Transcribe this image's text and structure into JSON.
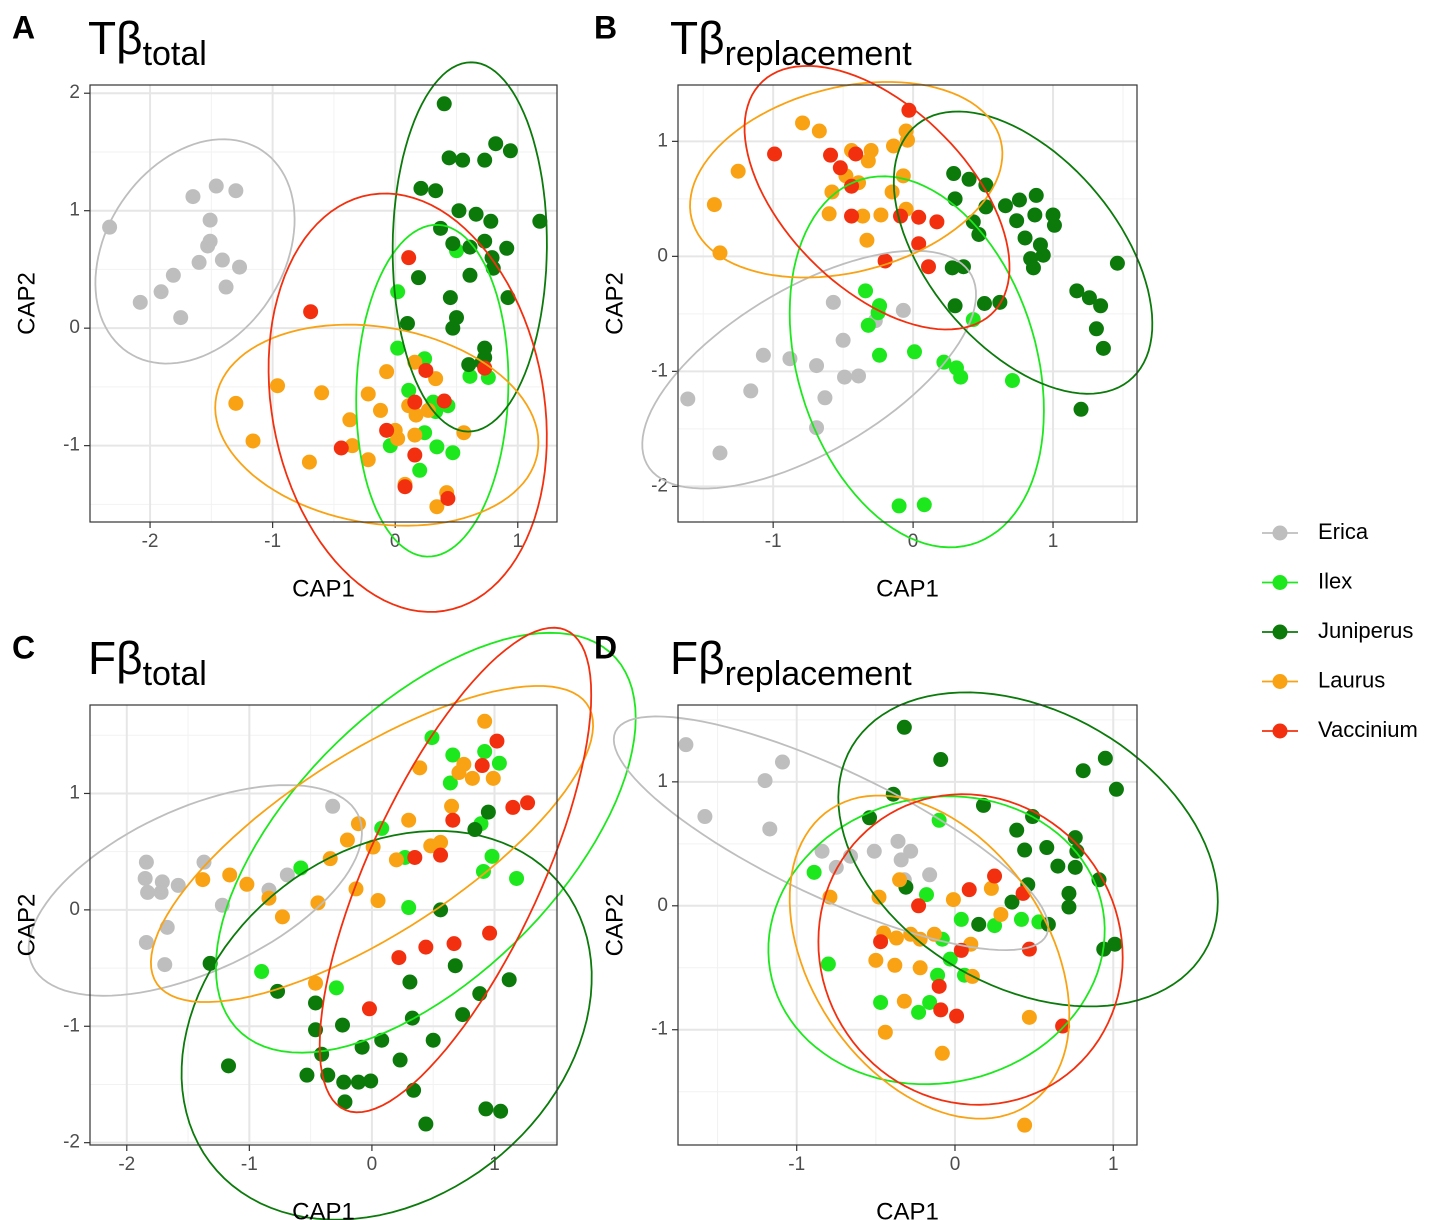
{
  "chart_data": [
    {
      "type": "scatter",
      "label": "A",
      "title": "Tβ",
      "title_sub": "total",
      "x_label": "CAP1",
      "y_label": "CAP2",
      "xlim": [
        -2.49,
        1.32
      ],
      "ylim": [
        -1.65,
        2.07
      ],
      "xticks": [
        -2,
        -1,
        0,
        1
      ],
      "yticks": [
        -1,
        0,
        1,
        2
      ],
      "grid": true,
      "ellipses": true,
      "series": [
        {
          "name": "Erica",
          "color": "#bebebe",
          "x": [
            -2.33,
            -1.65,
            -1.46,
            -1.3,
            -1.51,
            -1.51,
            -1.53,
            -1.6,
            -1.41,
            -1.27,
            -1.38,
            -1.81,
            -1.91,
            -1.75,
            -2.08
          ],
          "y": [
            0.86,
            1.12,
            1.21,
            1.17,
            0.92,
            0.74,
            0.7,
            0.56,
            0.58,
            0.52,
            0.35,
            0.45,
            0.31,
            0.09,
            0.22
          ]
        },
        {
          "name": "Ilex",
          "color": "#1de81d",
          "x": [
            0.5,
            0.02,
            0.02,
            0.24,
            0.61,
            0.76,
            0.31,
            0.33,
            0.43,
            0.34,
            0.47,
            -0.04,
            0.24,
            0.2,
            0.11
          ],
          "y": [
            0.66,
            0.31,
            -0.17,
            -0.26,
            -0.41,
            -0.42,
            -0.63,
            -0.71,
            -0.66,
            -1.01,
            -1.06,
            -1.0,
            -0.89,
            -1.21,
            -0.53
          ]
        },
        {
          "name": "Juniperus",
          "color": "#0b7a0b",
          "x": [
            0.4,
            0.44,
            0.55,
            0.73,
            0.82,
            0.94,
            1.18,
            0.21,
            0.33,
            0.52,
            0.66,
            0.78,
            0.37,
            0.47,
            0.61,
            0.73,
            0.79,
            0.91,
            0.19,
            0.45,
            0.61,
            0.8,
            0.92,
            0.5,
            0.73,
            0.73,
            0.1,
            0.47,
            0.71,
            0.6
          ],
          "y": [
            1.91,
            1.45,
            1.43,
            1.43,
            1.57,
            1.51,
            0.91,
            1.19,
            1.17,
            1.0,
            0.97,
            0.91,
            0.85,
            0.72,
            0.69,
            0.74,
            0.6,
            0.68,
            0.43,
            0.26,
            0.45,
            0.51,
            0.26,
            0.09,
            -0.17,
            -0.25,
            0.04,
            0.0,
            -0.29,
            -0.31
          ]
        },
        {
          "name": "Laurus",
          "color": "#f9a213",
          "x": [
            -1.3,
            -0.96,
            -1.16,
            -0.6,
            -0.7,
            -0.37,
            -0.35,
            -0.22,
            -0.22,
            -0.07,
            -0.12,
            0.0,
            0.11,
            0.16,
            0.16,
            0.33,
            0.27,
            0.56,
            0.42,
            0.34,
            0.08,
            0.17,
            0.02
          ],
          "y": [
            -0.64,
            -0.49,
            -0.96,
            -0.55,
            -1.14,
            -0.78,
            -1.0,
            -0.56,
            -1.12,
            -0.37,
            -0.7,
            -0.87,
            -0.66,
            -0.29,
            -0.91,
            -0.43,
            -0.7,
            -0.89,
            -1.4,
            -1.52,
            -1.33,
            -0.74,
            -0.94
          ]
        },
        {
          "name": "Vaccinium",
          "color": "#f2300f",
          "x": [
            -0.69,
            0.11,
            0.73,
            0.25,
            0.16,
            -0.07,
            -0.44,
            0.43,
            0.08,
            0.16,
            0.4
          ],
          "y": [
            0.14,
            0.6,
            -0.34,
            -0.36,
            -0.63,
            -0.87,
            -1.02,
            -1.45,
            -1.35,
            -1.08,
            -0.62
          ]
        }
      ]
    },
    {
      "type": "scatter",
      "label": "B",
      "title": "Tβ",
      "title_sub": "replacement",
      "x_label": "CAP1",
      "y_label": "CAP2",
      "xlim": [
        -1.68,
        1.6
      ],
      "ylim": [
        -2.31,
        1.49
      ],
      "xticks": [
        -1,
        0,
        1
      ],
      "yticks": [
        -2,
        -1,
        0,
        1
      ],
      "grid": true,
      "ellipses": true,
      "series": [
        {
          "name": "Erica",
          "color": "#bebebe",
          "x": [
            -1.61,
            -1.38,
            -1.16,
            -1.07,
            -0.88,
            -0.69,
            -0.63,
            -0.69,
            -0.49,
            -0.39,
            -0.5,
            -0.57,
            -0.27,
            -0.07
          ],
          "y": [
            -1.24,
            -1.71,
            -1.17,
            -0.86,
            -0.89,
            -0.95,
            -1.23,
            -1.49,
            -1.05,
            -1.04,
            -0.73,
            -0.4,
            -0.56,
            -0.47
          ]
        },
        {
          "name": "Ilex",
          "color": "#1de81d",
          "x": [
            -0.34,
            -0.32,
            -0.24,
            -0.25,
            -0.24,
            0.01,
            0.22,
            0.34,
            0.31,
            0.43,
            0.71,
            -0.1,
            0.08,
            -0.24
          ],
          "y": [
            -0.3,
            -0.6,
            -0.43,
            -0.49,
            -0.86,
            -0.83,
            -0.92,
            -1.05,
            -0.97,
            -0.55,
            -1.08,
            -2.17,
            -2.16,
            -0.43
          ]
        },
        {
          "name": "Juniperus",
          "color": "#0b7a0b",
          "x": [
            0.29,
            0.4,
            0.52,
            0.3,
            0.52,
            0.66,
            0.76,
            0.87,
            1.0,
            0.88,
            0.74,
            0.43,
            0.47,
            0.8,
            0.91,
            1.01,
            0.84,
            0.86,
            0.93,
            0.36,
            1.17,
            1.26,
            1.46,
            1.34,
            1.31,
            1.36,
            1.2,
            0.3,
            0.51,
            0.62,
            0.28
          ],
          "y": [
            0.72,
            0.67,
            0.62,
            0.5,
            0.43,
            0.44,
            0.49,
            0.36,
            0.36,
            0.53,
            0.31,
            0.3,
            0.19,
            0.16,
            0.1,
            0.27,
            -0.02,
            -0.1,
            0.01,
            -0.09,
            -0.3,
            -0.36,
            -0.06,
            -0.43,
            -0.63,
            -0.8,
            -1.33,
            -0.43,
            -0.41,
            -0.4,
            -0.1
          ]
        },
        {
          "name": "Laurus",
          "color": "#f9a213",
          "x": [
            -0.79,
            -0.67,
            -1.25,
            -1.42,
            -1.38,
            -0.44,
            -0.3,
            -0.14,
            -0.04,
            -0.05,
            -0.48,
            -0.58,
            -0.39,
            -0.32,
            -0.07,
            -0.15,
            -0.6,
            -0.36,
            -0.23,
            -0.33,
            -0.05
          ],
          "y": [
            1.16,
            1.09,
            0.74,
            0.45,
            0.03,
            0.92,
            0.92,
            0.96,
            1.01,
            1.09,
            0.7,
            0.56,
            0.64,
            0.83,
            0.7,
            0.56,
            0.37,
            0.35,
            0.36,
            0.14,
            0.41
          ]
        },
        {
          "name": "Vaccinium",
          "color": "#f2300f",
          "x": [
            -0.03,
            -0.99,
            -0.59,
            -0.41,
            -0.52,
            -0.44,
            -0.44,
            -0.09,
            0.04,
            0.17,
            -0.2,
            0.11,
            0.04
          ],
          "y": [
            1.27,
            0.89,
            0.88,
            0.89,
            0.77,
            0.61,
            0.35,
            0.35,
            0.34,
            0.3,
            -0.04,
            -0.09,
            0.11
          ]
        }
      ]
    },
    {
      "type": "scatter",
      "label": "C",
      "title": "Fβ",
      "title_sub": "total",
      "x_label": "CAP1",
      "y_label": "CAP2",
      "xlim": [
        -2.3,
        1.51
      ],
      "ylim": [
        -2.02,
        1.76
      ],
      "xticks": [
        -2,
        -1,
        0,
        1
      ],
      "yticks": [
        -2,
        -1,
        0,
        1
      ],
      "grid": true,
      "ellipses": true,
      "series": [
        {
          "name": "Erica",
          "color": "#bebebe",
          "x": [
            -1.84,
            -1.85,
            -1.71,
            -1.58,
            -1.83,
            -1.72,
            -1.84,
            -1.67,
            -1.69,
            -1.37,
            -1.22,
            -0.84,
            -0.69,
            -0.32
          ],
          "y": [
            0.41,
            0.27,
            0.24,
            0.21,
            0.15,
            0.15,
            -0.28,
            -0.15,
            -0.47,
            0.41,
            0.04,
            0.17,
            0.3,
            0.89
          ]
        },
        {
          "name": "Ilex",
          "color": "#1de81d",
          "x": [
            0.49,
            0.66,
            0.92,
            1.04,
            0.08,
            0.27,
            0.64,
            0.89,
            0.98,
            0.91,
            1.18,
            -0.58,
            0.3,
            -0.9,
            -0.29
          ],
          "y": [
            1.48,
            1.33,
            1.36,
            1.26,
            0.7,
            0.45,
            1.09,
            0.74,
            0.46,
            0.33,
            0.27,
            0.36,
            0.02,
            -0.53,
            -0.67
          ]
        },
        {
          "name": "Juniperus",
          "color": "#0b7a0b",
          "x": [
            -1.32,
            -0.77,
            -1.17,
            -0.53,
            -0.46,
            -0.46,
            -0.41,
            -0.36,
            -0.24,
            -0.23,
            -0.22,
            -0.11,
            -0.01,
            -0.08,
            0.08,
            0.23,
            0.33,
            0.34,
            0.5,
            0.56,
            0.68,
            0.74,
            0.88,
            1.12,
            0.44,
            0.93,
            1.05,
            0.95,
            0.84,
            0.31
          ],
          "y": [
            -0.46,
            -0.7,
            -1.34,
            -1.42,
            -0.8,
            -1.03,
            -1.24,
            -1.42,
            -0.99,
            -1.48,
            -1.65,
            -1.48,
            -1.47,
            -1.18,
            -1.12,
            -1.29,
            -0.93,
            -1.55,
            -1.12,
            0.0,
            -0.48,
            -0.9,
            -0.72,
            -0.6,
            -1.84,
            -1.71,
            -1.73,
            0.84,
            0.69,
            -0.62
          ]
        },
        {
          "name": "Laurus",
          "color": "#f9a213",
          "x": [
            0.92,
            -1.38,
            -1.16,
            -1.02,
            -0.84,
            -0.73,
            -0.46,
            -0.44,
            -0.34,
            -0.2,
            -0.11,
            0.01,
            -0.13,
            0.05,
            0.2,
            0.3,
            0.48,
            0.56,
            0.65,
            0.71,
            0.75,
            0.82,
            0.99,
            0.39
          ],
          "y": [
            1.62,
            0.26,
            0.3,
            0.22,
            0.1,
            -0.06,
            -0.63,
            0.06,
            0.44,
            0.6,
            0.74,
            0.54,
            0.18,
            0.08,
            0.43,
            0.77,
            0.55,
            0.58,
            0.89,
            1.18,
            1.25,
            1.13,
            1.13,
            1.22
          ]
        },
        {
          "name": "Vaccinium",
          "color": "#f2300f",
          "x": [
            1.02,
            1.27,
            1.15,
            0.9,
            0.66,
            0.56,
            0.35,
            0.67,
            0.44,
            0.22,
            -0.02,
            0.96
          ],
          "y": [
            1.45,
            0.92,
            0.88,
            1.24,
            0.77,
            0.47,
            0.45,
            -0.29,
            -0.32,
            -0.41,
            -0.85,
            -0.2
          ]
        }
      ]
    },
    {
      "type": "scatter",
      "label": "D",
      "title": "Fβ",
      "title_sub": "replacement",
      "x_label": "CAP1",
      "y_label": "CAP2",
      "xlim": [
        -1.75,
        1.15
      ],
      "ylim": [
        -1.93,
        1.62
      ],
      "xticks": [
        -1,
        0,
        1
      ],
      "yticks": [
        -1,
        0,
        1
      ],
      "grid": true,
      "ellipses": true,
      "series": [
        {
          "name": "Erica",
          "color": "#bebebe",
          "x": [
            -1.7,
            -1.58,
            -1.2,
            -1.09,
            -1.17,
            -0.84,
            -0.75,
            -0.66,
            -0.51,
            -0.36,
            -0.28,
            -0.34,
            -0.32,
            -0.16
          ],
          "y": [
            1.3,
            0.72,
            1.01,
            1.16,
            0.62,
            0.44,
            0.31,
            0.4,
            0.44,
            0.52,
            0.44,
            0.37,
            0.21,
            0.25
          ]
        },
        {
          "name": "Ilex",
          "color": "#1de81d",
          "x": [
            -0.89,
            -0.8,
            -0.1,
            -0.47,
            -0.18,
            -0.08,
            -0.03,
            0.06,
            -0.11,
            -0.23,
            0.25,
            0.42,
            0.53,
            0.04,
            -0.16
          ],
          "y": [
            0.27,
            -0.47,
            0.69,
            -0.78,
            0.09,
            -0.27,
            -0.43,
            -0.56,
            -0.56,
            -0.86,
            -0.16,
            -0.11,
            -0.13,
            -0.11,
            -0.78
          ]
        },
        {
          "name": "Juniperus",
          "color": "#0b7a0b",
          "x": [
            -0.32,
            -0.09,
            -0.39,
            -0.54,
            0.18,
            0.39,
            0.49,
            0.44,
            0.58,
            0.76,
            0.77,
            0.81,
            0.95,
            1.02,
            0.65,
            0.76,
            0.72,
            0.91,
            0.72,
            0.46,
            0.59,
            1.01,
            0.94,
            0.15,
            0.36,
            -0.31
          ],
          "y": [
            1.44,
            1.18,
            0.9,
            0.71,
            0.81,
            0.61,
            0.72,
            0.45,
            0.47,
            0.55,
            0.44,
            1.09,
            1.19,
            0.94,
            0.32,
            0.31,
            0.1,
            0.21,
            -0.01,
            0.17,
            -0.15,
            -0.31,
            -0.35,
            -0.15,
            0.03,
            0.15
          ]
        },
        {
          "name": "Laurus",
          "color": "#f9a213",
          "x": [
            -0.79,
            -0.48,
            -0.35,
            -0.01,
            -0.45,
            -0.37,
            -0.28,
            -0.22,
            -0.5,
            -0.38,
            -0.22,
            -0.13,
            0.11,
            0.1,
            -0.44,
            -0.08,
            -0.32,
            0.44,
            0.47,
            0.29,
            0.23
          ],
          "y": [
            0.07,
            0.07,
            0.21,
            0.05,
            -0.22,
            -0.26,
            -0.23,
            -0.27,
            -0.44,
            -0.48,
            -0.5,
            -0.23,
            -0.57,
            -0.31,
            -1.02,
            -1.19,
            -0.77,
            -1.77,
            -0.9,
            -0.07,
            0.14
          ]
        },
        {
          "name": "Vaccinium",
          "color": "#f2300f",
          "x": [
            -0.47,
            -0.09,
            0.01,
            0.04,
            0.25,
            0.43,
            0.47,
            0.68,
            0.09,
            -0.1,
            -0.23
          ],
          "y": [
            -0.29,
            -0.84,
            -0.89,
            -0.36,
            0.24,
            0.1,
            -0.35,
            -0.97,
            0.13,
            -0.65,
            0.0
          ]
        }
      ]
    }
  ]
}
